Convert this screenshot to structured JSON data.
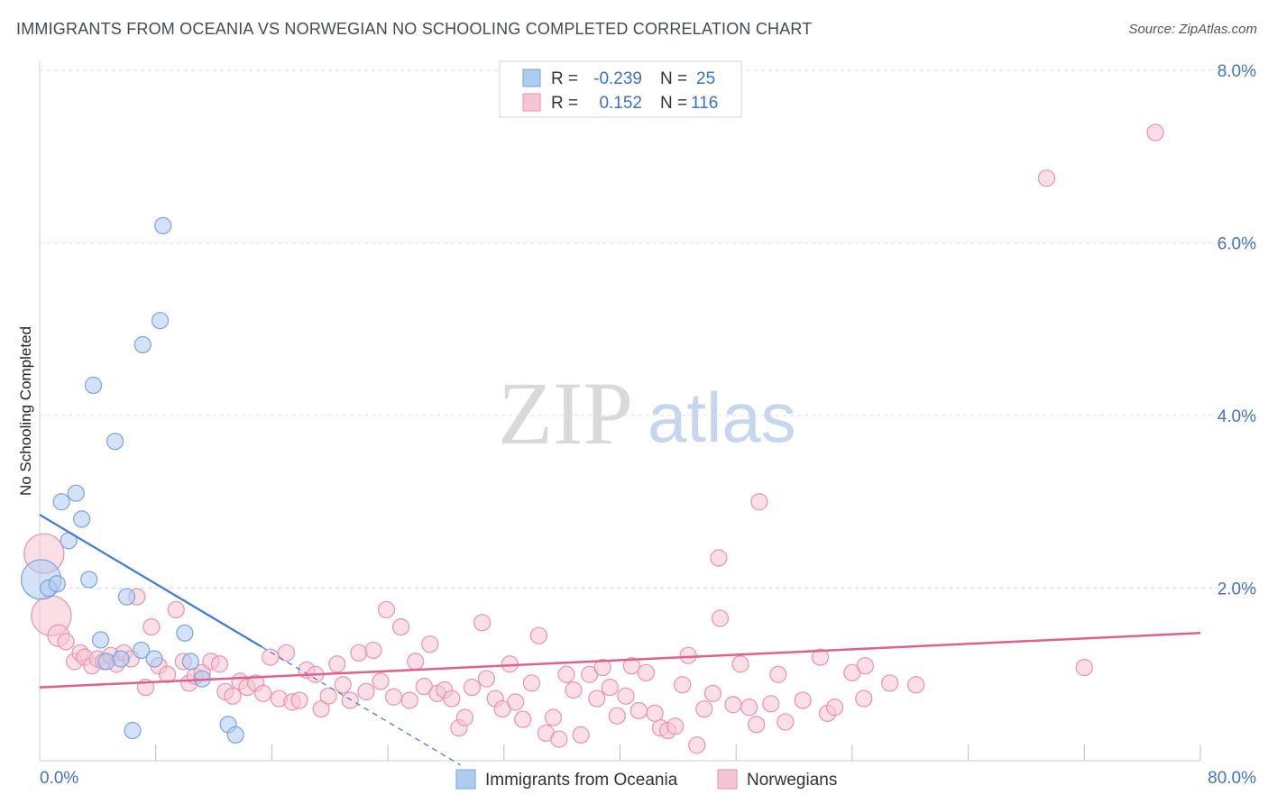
{
  "header": {
    "title": "IMMIGRANTS FROM OCEANIA VS NORWEGIAN NO SCHOOLING COMPLETED CORRELATION CHART",
    "source": "Source: ZipAtlas.com"
  },
  "watermark": {
    "zip": "ZIP",
    "atlas": "atlas"
  },
  "legend": {
    "rows": [
      {
        "r_label": "R =",
        "r_value": "-0.239",
        "n_label": "N =",
        "n_value": "25",
        "color": "#aecbf0",
        "stroke": "#7aa3dd"
      },
      {
        "r_label": "R =",
        "r_value": "0.152",
        "n_label": "N =",
        "n_value": "116",
        "color": "#f7c4d4",
        "stroke": "#e892ae"
      }
    ]
  },
  "bottom_legend": {
    "items": [
      {
        "label": "Immigrants from Oceania",
        "color": "#aecbf0",
        "stroke": "#7aa3dd"
      },
      {
        "label": "Norwegians",
        "color": "#f7c4d4",
        "stroke": "#e892ae"
      }
    ]
  },
  "chart_data": {
    "type": "scatter",
    "title": "IMMIGRANTS FROM OCEANIA VS NORWEGIAN NO SCHOOLING COMPLETED CORRELATION CHART",
    "xlabel": "",
    "ylabel": "No Schooling Completed",
    "xlim": [
      0,
      80
    ],
    "ylim": [
      0,
      8
    ],
    "x_tick_labels": [
      "0.0%",
      "80.0%"
    ],
    "y_ticks": [
      2,
      4,
      6,
      8
    ],
    "y_tick_labels": [
      "2.0%",
      "4.0%",
      "6.0%",
      "8.0%"
    ],
    "grid": true,
    "legend_position": "top-center",
    "series": [
      {
        "name": "Immigrants from Oceania",
        "color": "#aecbf0",
        "stroke": "#7aa3dd",
        "line_color": "#3a7bd5",
        "trend": {
          "x0": 0,
          "y0": 2.85,
          "x_solid_end": 15.3,
          "x_dash_end": 29,
          "slope": -0.1,
          "r": -0.239,
          "n": 25
        },
        "points": [
          {
            "x": 0.1,
            "y": 2.1,
            "s": 2
          },
          {
            "x": 0.6,
            "y": 2.0,
            "s": 1
          },
          {
            "x": 1.2,
            "y": 2.05,
            "s": 1
          },
          {
            "x": 1.5,
            "y": 3.0,
            "s": 1
          },
          {
            "x": 2.0,
            "y": 2.55,
            "s": 1
          },
          {
            "x": 2.5,
            "y": 3.1,
            "s": 1
          },
          {
            "x": 2.9,
            "y": 2.8,
            "s": 1
          },
          {
            "x": 3.4,
            "y": 2.1,
            "s": 1
          },
          {
            "x": 3.7,
            "y": 4.35,
            "s": 1
          },
          {
            "x": 4.2,
            "y": 1.4,
            "s": 1
          },
          {
            "x": 4.6,
            "y": 1.15,
            "s": 1
          },
          {
            "x": 5.2,
            "y": 3.7,
            "s": 1
          },
          {
            "x": 5.6,
            "y": 1.18,
            "s": 1
          },
          {
            "x": 6.0,
            "y": 1.9,
            "s": 1
          },
          {
            "x": 6.4,
            "y": 0.35,
            "s": 1
          },
          {
            "x": 7.0,
            "y": 1.28,
            "s": 1
          },
          {
            "x": 7.1,
            "y": 4.82,
            "s": 1
          },
          {
            "x": 7.9,
            "y": 1.18,
            "s": 1
          },
          {
            "x": 8.3,
            "y": 5.1,
            "s": 1
          },
          {
            "x": 8.5,
            "y": 6.2,
            "s": 1
          },
          {
            "x": 10.0,
            "y": 1.48,
            "s": 1
          },
          {
            "x": 10.4,
            "y": 1.15,
            "s": 1
          },
          {
            "x": 11.2,
            "y": 0.95,
            "s": 1
          },
          {
            "x": 13.0,
            "y": 0.42,
            "s": 1
          },
          {
            "x": 13.5,
            "y": 0.3,
            "s": 1
          }
        ]
      },
      {
        "name": "Norwegians",
        "color": "#f7c4d4",
        "stroke": "#e892ae",
        "line_color": "#e05f8e",
        "trend": {
          "x0": 0,
          "y0": 0.85,
          "x1": 80,
          "y1": 1.48,
          "r": 0.152,
          "n": 116
        },
        "points": [
          {
            "x": 0.3,
            "y": 2.4,
            "s": 2
          },
          {
            "x": 0.8,
            "y": 1.68,
            "s": 2
          },
          {
            "x": 1.3,
            "y": 1.45,
            "s": 1.3
          },
          {
            "x": 1.8,
            "y": 1.38,
            "s": 1
          },
          {
            "x": 2.4,
            "y": 1.15,
            "s": 1
          },
          {
            "x": 2.8,
            "y": 1.25,
            "s": 1
          },
          {
            "x": 3.1,
            "y": 1.2,
            "s": 1
          },
          {
            "x": 3.6,
            "y": 1.1,
            "s": 1
          },
          {
            "x": 4.0,
            "y": 1.18,
            "s": 1
          },
          {
            "x": 4.4,
            "y": 1.15,
            "s": 1
          },
          {
            "x": 4.9,
            "y": 1.22,
            "s": 1
          },
          {
            "x": 5.3,
            "y": 1.12,
            "s": 1
          },
          {
            "x": 5.8,
            "y": 1.25,
            "s": 1
          },
          {
            "x": 6.3,
            "y": 1.18,
            "s": 1
          },
          {
            "x": 6.7,
            "y": 1.9,
            "s": 1
          },
          {
            "x": 7.3,
            "y": 0.85,
            "s": 1
          },
          {
            "x": 7.7,
            "y": 1.55,
            "s": 1
          },
          {
            "x": 8.2,
            "y": 1.1,
            "s": 1
          },
          {
            "x": 8.8,
            "y": 1.0,
            "s": 1
          },
          {
            "x": 9.4,
            "y": 1.75,
            "s": 1
          },
          {
            "x": 9.9,
            "y": 1.15,
            "s": 1
          },
          {
            "x": 10.3,
            "y": 0.9,
            "s": 1
          },
          {
            "x": 10.7,
            "y": 0.98,
            "s": 1
          },
          {
            "x": 11.2,
            "y": 1.02,
            "s": 1
          },
          {
            "x": 11.8,
            "y": 1.15,
            "s": 1
          },
          {
            "x": 12.4,
            "y": 1.12,
            "s": 1
          },
          {
            "x": 12.8,
            "y": 0.8,
            "s": 1
          },
          {
            "x": 13.3,
            "y": 0.75,
            "s": 1
          },
          {
            "x": 13.8,
            "y": 0.92,
            "s": 1
          },
          {
            "x": 14.3,
            "y": 0.85,
            "s": 1
          },
          {
            "x": 14.9,
            "y": 0.9,
            "s": 1
          },
          {
            "x": 15.4,
            "y": 0.78,
            "s": 1
          },
          {
            "x": 15.9,
            "y": 1.2,
            "s": 1
          },
          {
            "x": 16.5,
            "y": 0.72,
            "s": 1
          },
          {
            "x": 17.0,
            "y": 1.25,
            "s": 1
          },
          {
            "x": 17.4,
            "y": 0.68,
            "s": 1
          },
          {
            "x": 17.9,
            "y": 0.7,
            "s": 1
          },
          {
            "x": 18.4,
            "y": 1.05,
            "s": 1
          },
          {
            "x": 19.0,
            "y": 1.0,
            "s": 1
          },
          {
            "x": 19.4,
            "y": 0.6,
            "s": 1
          },
          {
            "x": 19.9,
            "y": 0.75,
            "s": 1
          },
          {
            "x": 20.5,
            "y": 1.12,
            "s": 1
          },
          {
            "x": 20.9,
            "y": 0.88,
            "s": 1
          },
          {
            "x": 21.4,
            "y": 0.7,
            "s": 1
          },
          {
            "x": 22.0,
            "y": 1.25,
            "s": 1
          },
          {
            "x": 22.5,
            "y": 0.8,
            "s": 1
          },
          {
            "x": 23.0,
            "y": 1.28,
            "s": 1
          },
          {
            "x": 23.5,
            "y": 0.92,
            "s": 1
          },
          {
            "x": 23.9,
            "y": 1.75,
            "s": 1
          },
          {
            "x": 24.4,
            "y": 0.74,
            "s": 1
          },
          {
            "x": 24.9,
            "y": 1.55,
            "s": 1
          },
          {
            "x": 25.5,
            "y": 0.7,
            "s": 1
          },
          {
            "x": 25.9,
            "y": 1.15,
            "s": 1
          },
          {
            "x": 26.5,
            "y": 0.86,
            "s": 1
          },
          {
            "x": 26.9,
            "y": 1.35,
            "s": 1
          },
          {
            "x": 27.4,
            "y": 0.78,
            "s": 1
          },
          {
            "x": 27.9,
            "y": 0.82,
            "s": 1
          },
          {
            "x": 28.4,
            "y": 0.72,
            "s": 1
          },
          {
            "x": 28.9,
            "y": 0.38,
            "s": 1
          },
          {
            "x": 29.3,
            "y": 0.5,
            "s": 1
          },
          {
            "x": 29.8,
            "y": 0.85,
            "s": 1
          },
          {
            "x": 30.5,
            "y": 1.6,
            "s": 1
          },
          {
            "x": 30.8,
            "y": 0.95,
            "s": 1
          },
          {
            "x": 31.4,
            "y": 0.72,
            "s": 1
          },
          {
            "x": 31.9,
            "y": 0.6,
            "s": 1
          },
          {
            "x": 32.4,
            "y": 1.12,
            "s": 1
          },
          {
            "x": 32.8,
            "y": 0.68,
            "s": 1
          },
          {
            "x": 33.3,
            "y": 0.48,
            "s": 1
          },
          {
            "x": 33.9,
            "y": 0.9,
            "s": 1
          },
          {
            "x": 34.4,
            "y": 1.45,
            "s": 1
          },
          {
            "x": 34.9,
            "y": 0.32,
            "s": 1
          },
          {
            "x": 35.4,
            "y": 0.5,
            "s": 1
          },
          {
            "x": 35.8,
            "y": 0.25,
            "s": 1
          },
          {
            "x": 36.3,
            "y": 1.0,
            "s": 1
          },
          {
            "x": 36.8,
            "y": 0.82,
            "s": 1
          },
          {
            "x": 37.3,
            "y": 0.3,
            "s": 1
          },
          {
            "x": 37.9,
            "y": 1.0,
            "s": 1
          },
          {
            "x": 38.4,
            "y": 0.72,
            "s": 1
          },
          {
            "x": 38.8,
            "y": 1.08,
            "s": 1
          },
          {
            "x": 39.3,
            "y": 0.85,
            "s": 1
          },
          {
            "x": 39.8,
            "y": 0.52,
            "s": 1
          },
          {
            "x": 40.4,
            "y": 0.75,
            "s": 1
          },
          {
            "x": 40.8,
            "y": 1.1,
            "s": 1
          },
          {
            "x": 41.3,
            "y": 0.58,
            "s": 1
          },
          {
            "x": 41.8,
            "y": 1.02,
            "s": 1
          },
          {
            "x": 42.4,
            "y": 0.55,
            "s": 1
          },
          {
            "x": 42.8,
            "y": 0.38,
            "s": 1
          },
          {
            "x": 43.3,
            "y": 0.35,
            "s": 1
          },
          {
            "x": 43.8,
            "y": 0.4,
            "s": 1
          },
          {
            "x": 44.3,
            "y": 0.88,
            "s": 1
          },
          {
            "x": 44.7,
            "y": 1.22,
            "s": 1
          },
          {
            "x": 45.3,
            "y": 0.18,
            "s": 1
          },
          {
            "x": 45.8,
            "y": 0.6,
            "s": 1
          },
          {
            "x": 46.4,
            "y": 0.78,
            "s": 1
          },
          {
            "x": 46.8,
            "y": 2.35,
            "s": 1
          },
          {
            "x": 46.9,
            "y": 1.65,
            "s": 1
          },
          {
            "x": 47.8,
            "y": 0.65,
            "s": 1
          },
          {
            "x": 48.3,
            "y": 1.12,
            "s": 1
          },
          {
            "x": 48.9,
            "y": 0.62,
            "s": 1
          },
          {
            "x": 49.4,
            "y": 0.42,
            "s": 1
          },
          {
            "x": 49.6,
            "y": 3.0,
            "s": 1
          },
          {
            "x": 50.4,
            "y": 0.66,
            "s": 1
          },
          {
            "x": 50.9,
            "y": 1.0,
            "s": 1
          },
          {
            "x": 51.4,
            "y": 0.45,
            "s": 1
          },
          {
            "x": 52.6,
            "y": 0.7,
            "s": 1
          },
          {
            "x": 53.8,
            "y": 1.2,
            "s": 1
          },
          {
            "x": 54.3,
            "y": 0.55,
            "s": 1
          },
          {
            "x": 54.8,
            "y": 0.62,
            "s": 1
          },
          {
            "x": 56.0,
            "y": 1.02,
            "s": 1
          },
          {
            "x": 56.8,
            "y": 0.72,
            "s": 1
          },
          {
            "x": 56.9,
            "y": 1.1,
            "s": 1
          },
          {
            "x": 58.6,
            "y": 0.9,
            "s": 1
          },
          {
            "x": 60.4,
            "y": 0.88,
            "s": 1
          },
          {
            "x": 69.4,
            "y": 6.75,
            "s": 1
          },
          {
            "x": 72.0,
            "y": 1.08,
            "s": 1
          },
          {
            "x": 76.9,
            "y": 7.28,
            "s": 1
          }
        ]
      }
    ]
  }
}
